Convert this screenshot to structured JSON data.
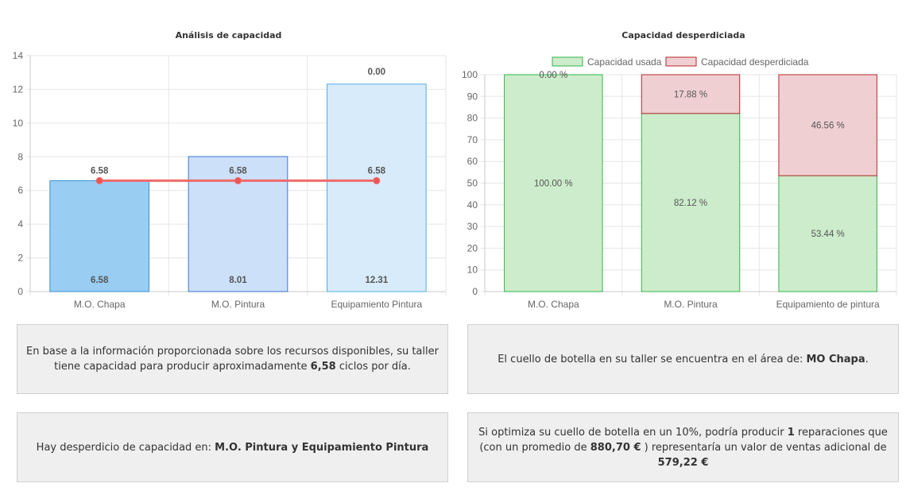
{
  "chart_data": [
    {
      "type": "bar",
      "title": "Análisis de capacidad",
      "categories": [
        "M.O. Chapa",
        "M.O. Pintura",
        "Equipamiento Pintura"
      ],
      "series": [
        {
          "kind": "bar",
          "values": [
            6.58,
            8.01,
            12.31
          ],
          "colors": [
            "#99cdf2",
            "#cce0f9",
            "#d7ebfa"
          ],
          "borders": [
            "#3a8fd6",
            "#3d74cc",
            "#57aee0"
          ]
        },
        {
          "kind": "line",
          "values": [
            6.58,
            6.58,
            6.58
          ],
          "color": "#f16a6a"
        }
      ],
      "line_labels": [
        "6.58",
        "6.58",
        "6.58"
      ],
      "bar_labels": [
        "6.58",
        "8.01",
        "12.31"
      ],
      "top_labels": [
        "",
        "",
        "0.00"
      ],
      "ylim": [
        0,
        14
      ],
      "yticks": [
        "0",
        "2",
        "4",
        "6",
        "8",
        "10",
        "12",
        "14"
      ],
      "grid": true
    },
    {
      "type": "bar",
      "stacked": true,
      "title": "Capacidad desperdiciada",
      "categories": [
        "M.O. Chapa",
        "M.O. Pintura",
        "Equipamiento de pintura"
      ],
      "series": [
        {
          "name": "Capacidad usada",
          "values": [
            100.0,
            82.12,
            53.44
          ],
          "color": "#cdeccb",
          "border": "#33b54a"
        },
        {
          "name": "Capacidad desperdiciada",
          "values": [
            0.0,
            17.88,
            46.56
          ],
          "color": "#efcfd2",
          "border": "#b52a2a"
        }
      ],
      "used_labels": [
        "100.00 %",
        "82.12 %",
        "53.44 %"
      ],
      "waste_labels": [
        "0.00 %",
        "17.88 %",
        "46.56 %"
      ],
      "ylim": [
        0,
        100
      ],
      "yticks": [
        "0",
        "10",
        "20",
        "30",
        "40",
        "50",
        "60",
        "70",
        "80",
        "90",
        "100"
      ],
      "legend": "top",
      "grid": true
    }
  ],
  "panels": {
    "capacity": {
      "pre": "En base a la información proporcionada sobre los recursos disponibles, su taller tiene capacidad para producir aproximadamente ",
      "value": "6,58",
      "post": " ciclos por día."
    },
    "bottleneck": {
      "pre": "El cuello de botella en su taller se encuentra en el área de: ",
      "value": "MO Chapa",
      "post": "."
    },
    "waste": {
      "pre": "Hay desperdicio de capacidad en: ",
      "value": "M.O. Pintura y Equipamiento Pintura"
    },
    "optimization": {
      "p1": "Si optimiza su cuello de botella en un 10%, podría producir ",
      "v1": "1",
      "p2": " reparaciones que (con un promedio de ",
      "v2": "880,70 €",
      "p3": " ) representaría un valor de ventas adicional de ",
      "v3": "579,22 €"
    }
  }
}
